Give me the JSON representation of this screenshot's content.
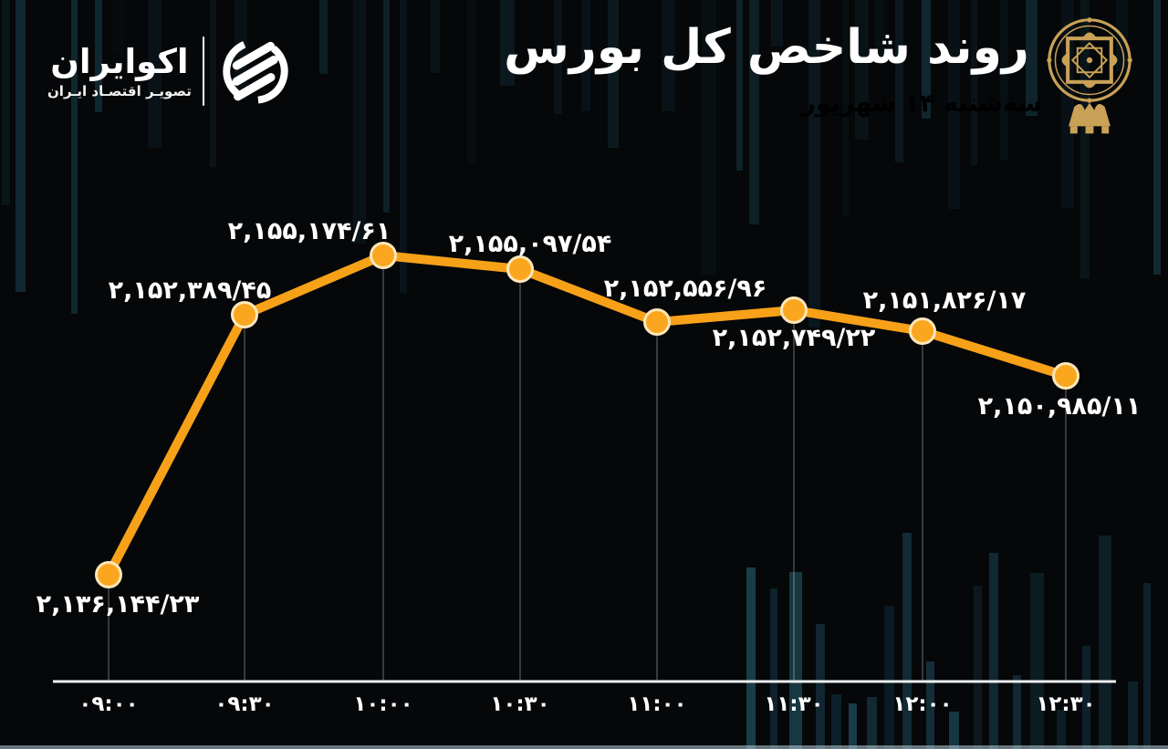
{
  "brand": {
    "name": "اکوایران",
    "tagline": "تصویـر اقتصـاد ایـران"
  },
  "header": {
    "title": "روند شاخص کل بورس",
    "date": "سه‌شنبه ۱۴ شهریور"
  },
  "colors": {
    "background": "#050709",
    "line_orange": "#F7A119",
    "dot_fill": "#FAA71F",
    "dot_stroke": "#FFE7BC",
    "date_orange": "#F2A12E",
    "gold": "#C9A257",
    "text_white": "#FFFFFF",
    "axis_white": "#ECF0F2",
    "dropline": "rgba(255,255,255,0.32)",
    "bg_bar_teal": "#16333F"
  },
  "chart_data": {
    "type": "line",
    "title": "روند شاخص کل بورس",
    "subtitle": "سه‌شنبه ۱۴ شهریور",
    "xlabel": "",
    "ylabel": "",
    "x": [
      "۰۹:۰۰",
      "۰۹:۳۰",
      "۱۰:۰۰",
      "۱۰:۳۰",
      "۱۱:۰۰",
      "۱۱:۳۰",
      "۱۲:۰۰",
      "۱۲:۳۰"
    ],
    "values": [
      2136144.23,
      2152389.45,
      2155174.61,
      2155097.54,
      2152556.96,
      2152749.22,
      2151826.17,
      2150985.11
    ],
    "value_labels": [
      "۲,۱۳۶,۱۴۴/۲۳",
      "۲,۱۵۲,۳۸۹/۴۵",
      "۲,۱۵۵,۱۷۴/۶۱",
      "۲,۱۵۵,۰۹۷/۵۴",
      "۲,۱۵۲,۵۵۶/۹۶",
      "۲,۱۵۲,۷۴۹/۲۲",
      "۲,۱۵۱,۸۲۶/۱۷",
      "۲,۱۵۰,۹۸۵/۱۱"
    ],
    "ylim": [
      2135000,
      2156000
    ],
    "grid": false,
    "legend": "none",
    "series_name": "شاخص کل بورس"
  }
}
